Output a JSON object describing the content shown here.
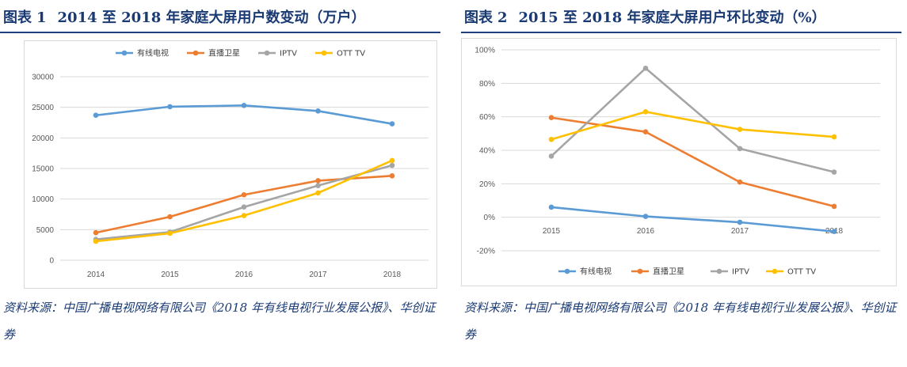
{
  "figures": [
    {
      "label": "图表",
      "number": "1",
      "title": "2014 至 2018 年家庭大屏用户数变动（万户）",
      "source": "资料来源：中国广播电视网络有限公司《2018 年有线电视行业发展公报》、华创证券"
    },
    {
      "label": "图表",
      "number": "2",
      "title": "2015 至 2018 年家庭大屏用户环比变动（%）",
      "source": "资料来源：中国广播电视网络有限公司《2018 年有线电视行业发展公报》、华创证券"
    }
  ],
  "colors": {
    "title": "#1a3a73",
    "series": [
      "#5b9bd5",
      "#ed7d31",
      "#a5a5a5",
      "#ffc000"
    ],
    "grid": "#d9d9d9"
  },
  "chart_data": [
    {
      "type": "line",
      "x": [
        "2014",
        "2015",
        "2016",
        "2017",
        "2018"
      ],
      "series": [
        {
          "name": "有线电视",
          "values": [
            23700,
            25100,
            25300,
            24400,
            22300
          ]
        },
        {
          "name": "直播卫星",
          "values": [
            4500,
            7100,
            10700,
            13000,
            13800
          ]
        },
        {
          "name": "IPTV",
          "values": [
            3400,
            4600,
            8700,
            12200,
            15500
          ]
        },
        {
          "name": "OTT TV",
          "values": [
            3100,
            4400,
            7300,
            11000,
            16300
          ]
        }
      ],
      "ylim": [
        0,
        30000
      ],
      "yticks": [
        "0",
        "5000",
        "10000",
        "15000",
        "20000",
        "25000",
        "30000"
      ],
      "grid": true,
      "legend": "top"
    },
    {
      "type": "line",
      "x": [
        "2015",
        "2016",
        "2017",
        "2018"
      ],
      "series": [
        {
          "name": "有线电视",
          "values": [
            6,
            0.5,
            -3,
            -8.5
          ]
        },
        {
          "name": "直播卫星",
          "values": [
            59.5,
            51,
            21,
            6.5
          ]
        },
        {
          "name": "IPTV",
          "values": [
            36.5,
            89,
            41,
            27
          ]
        },
        {
          "name": "OTT TV",
          "values": [
            46.5,
            63,
            52.5,
            48
          ]
        }
      ],
      "ylim": [
        -20,
        100
      ],
      "yticks": [
        "-20%",
        "0%",
        "20%",
        "40%",
        "60%",
        "80%",
        "100%"
      ],
      "grid": true,
      "legend": "bottom"
    }
  ]
}
